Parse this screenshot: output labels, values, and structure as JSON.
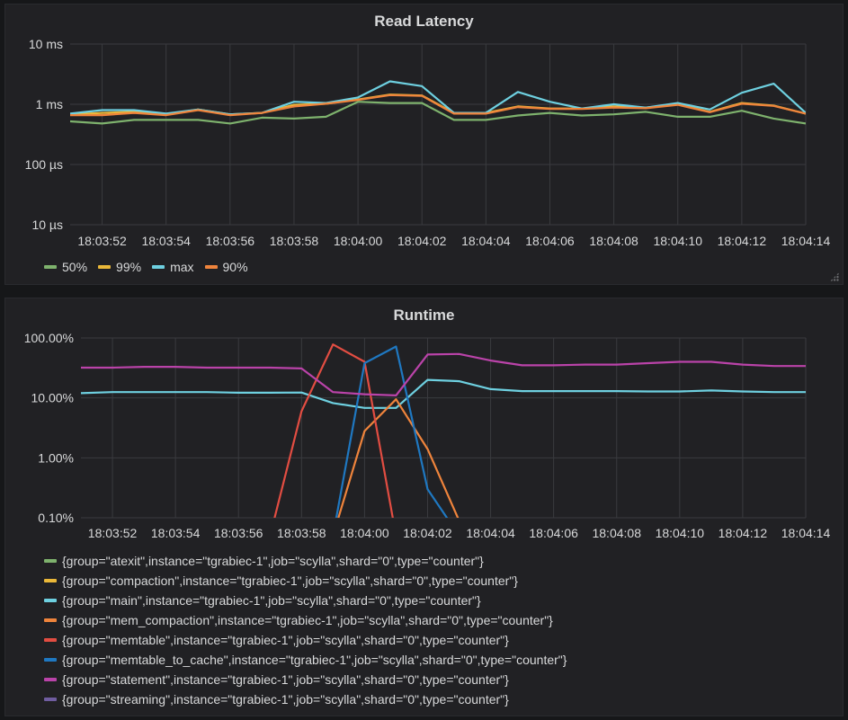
{
  "chart_data": [
    {
      "type": "line",
      "title": "Read Latency",
      "y_scale": "log",
      "y_ticks": [
        {
          "value": 0.01,
          "label": "10 µs"
        },
        {
          "value": 0.1,
          "label": "100 µs"
        },
        {
          "value": 1,
          "label": "1 ms"
        },
        {
          "value": 10,
          "label": "10 ms"
        }
      ],
      "y_unit": "ms",
      "ylim": [
        0.01,
        10
      ],
      "x_tick_labels": [
        "18:03:52",
        "18:03:54",
        "18:03:56",
        "18:03:58",
        "18:04:00",
        "18:04:02",
        "18:04:04",
        "18:04:06",
        "18:04:08",
        "18:04:10",
        "18:04:12",
        "18:04:14"
      ],
      "x": [
        "18:03:51",
        "18:03:52",
        "18:03:53",
        "18:03:54",
        "18:03:55",
        "18:03:56",
        "18:03:57",
        "18:03:58",
        "18:03:59",
        "18:04:00",
        "18:04:01",
        "18:04:02",
        "18:04:03",
        "18:04:04",
        "18:04:05",
        "18:04:06",
        "18:04:07",
        "18:04:08",
        "18:04:09",
        "18:04:10",
        "18:04:11",
        "18:04:12",
        "18:04:13",
        "18:04:14"
      ],
      "grid": true,
      "legend_position": "bottom",
      "series": [
        {
          "name": "50%",
          "color": "#7eb26d",
          "values": [
            0.52,
            0.48,
            0.55,
            0.55,
            0.55,
            0.48,
            0.6,
            0.58,
            0.62,
            1.1,
            1.05,
            1.05,
            0.55,
            0.55,
            0.65,
            0.72,
            0.65,
            0.68,
            0.75,
            0.62,
            0.62,
            0.78,
            0.58,
            0.48
          ]
        },
        {
          "name": "99%",
          "color": "#eab839",
          "values": [
            0.68,
            0.72,
            0.75,
            0.68,
            0.82,
            0.68,
            0.72,
            0.98,
            1.02,
            1.2,
            1.45,
            1.4,
            0.72,
            0.72,
            0.92,
            0.85,
            0.85,
            0.92,
            0.88,
            1.0,
            0.75,
            1.05,
            0.95,
            0.7
          ]
        },
        {
          "name": "max",
          "color": "#6ed0e0",
          "values": [
            0.7,
            0.8,
            0.8,
            0.7,
            0.82,
            0.68,
            0.72,
            1.1,
            1.05,
            1.3,
            2.4,
            2.0,
            0.72,
            0.72,
            1.6,
            1.1,
            0.85,
            1.0,
            0.88,
            1.05,
            0.82,
            1.55,
            2.2,
            0.72
          ]
        },
        {
          "name": "90%",
          "color": "#ef843c",
          "values": [
            0.66,
            0.66,
            0.72,
            0.66,
            0.8,
            0.66,
            0.72,
            0.92,
            1.02,
            1.18,
            1.42,
            1.38,
            0.7,
            0.7,
            0.9,
            0.84,
            0.84,
            0.88,
            0.86,
            0.98,
            0.74,
            1.02,
            0.94,
            0.7
          ]
        }
      ]
    },
    {
      "type": "line",
      "title": "Runtime",
      "y_scale": "log",
      "y_ticks": [
        {
          "value": 0.1,
          "label": "0.10%"
        },
        {
          "value": 1,
          "label": "1.00%"
        },
        {
          "value": 10,
          "label": "10.00%"
        },
        {
          "value": 100,
          "label": "100.00%"
        }
      ],
      "y_unit": "%",
      "ylim": [
        0.1,
        100
      ],
      "x_tick_labels": [
        "18:03:52",
        "18:03:54",
        "18:03:56",
        "18:03:58",
        "18:04:00",
        "18:04:02",
        "18:04:04",
        "18:04:06",
        "18:04:08",
        "18:04:10",
        "18:04:12",
        "18:04:14"
      ],
      "x": [
        "18:03:51",
        "18:03:52",
        "18:03:53",
        "18:03:54",
        "18:03:55",
        "18:03:56",
        "18:03:57",
        "18:03:58",
        "18:03:59",
        "18:04:00",
        "18:04:01",
        "18:04:02",
        "18:04:03",
        "18:04:04",
        "18:04:05",
        "18:04:06",
        "18:04:07",
        "18:04:08",
        "18:04:09",
        "18:04:10",
        "18:04:11",
        "18:04:12",
        "18:04:13",
        "18:04:14"
      ],
      "grid": true,
      "legend_position": "bottom",
      "series": [
        {
          "name": "{group=\"atexit\",instance=\"tgrabiec-1\",job=\"scylla\",shard=\"0\",type=\"counter\"}",
          "color": "#7eb26d",
          "values": [
            null,
            null,
            null,
            null,
            null,
            null,
            null,
            null,
            null,
            null,
            null,
            null,
            null,
            null,
            null,
            null,
            null,
            null,
            null,
            null,
            null,
            null,
            null,
            null
          ]
        },
        {
          "name": "{group=\"compaction\",instance=\"tgrabiec-1\",job=\"scylla\",shard=\"0\",type=\"counter\"}",
          "color": "#eab839",
          "values": [
            null,
            null,
            null,
            null,
            null,
            null,
            null,
            null,
            null,
            null,
            null,
            null,
            null,
            null,
            null,
            null,
            null,
            null,
            null,
            null,
            null,
            null,
            null,
            null
          ]
        },
        {
          "name": "{group=\"main\",instance=\"tgrabiec-1\",job=\"scylla\",shard=\"0\",type=\"counter\"}",
          "color": "#6ed0e0",
          "values": [
            12,
            12.5,
            12.5,
            12.5,
            12.5,
            12.2,
            12.2,
            12.3,
            8.2,
            6.8,
            6.8,
            20,
            19,
            14,
            13,
            13,
            13,
            13,
            12.8,
            12.8,
            13.3,
            12.8,
            12.5,
            12.5
          ]
        },
        {
          "name": "{group=\"mem_compaction\",instance=\"tgrabiec-1\",job=\"scylla\",shard=\"0\",type=\"counter\"}",
          "color": "#ef843c",
          "values": [
            null,
            null,
            null,
            null,
            null,
            null,
            null,
            null,
            0.05,
            2.8,
            9.5,
            1.4,
            0.09,
            null,
            null,
            null,
            null,
            null,
            null,
            null,
            null,
            null,
            null,
            null
          ]
        },
        {
          "name": "{group=\"memtable\",instance=\"tgrabiec-1\",job=\"scylla\",shard=\"0\",type=\"counter\"}",
          "color": "#e24d42",
          "values": [
            null,
            null,
            null,
            null,
            null,
            null,
            0.05,
            6,
            78,
            40,
            0.05,
            null,
            null,
            null,
            null,
            null,
            null,
            null,
            null,
            null,
            null,
            null,
            null,
            null
          ]
        },
        {
          "name": "{group=\"memtable_to_cache\",instance=\"tgrabiec-1\",job=\"scylla\",shard=\"0\",type=\"counter\"}",
          "color": "#1f78c1",
          "values": [
            null,
            null,
            null,
            null,
            null,
            null,
            null,
            null,
            0.05,
            38,
            72,
            0.3,
            0.05,
            null,
            null,
            null,
            null,
            null,
            null,
            null,
            null,
            null,
            null,
            null
          ]
        },
        {
          "name": "{group=\"statement\",instance=\"tgrabiec-1\",job=\"scylla\",shard=\"0\",type=\"counter\"}",
          "color": "#ba43a9",
          "values": [
            32,
            32,
            33,
            33,
            32,
            32,
            32,
            31,
            12.5,
            11.5,
            11,
            53,
            54,
            42,
            35,
            35,
            36,
            36,
            38,
            40,
            40,
            36,
            34,
            34
          ]
        },
        {
          "name": "{group=\"streaming\",instance=\"tgrabiec-1\",job=\"scylla\",shard=\"0\",type=\"counter\"}",
          "color": "#705da0",
          "values": [
            null,
            null,
            null,
            null,
            null,
            null,
            null,
            null,
            null,
            null,
            null,
            null,
            null,
            null,
            null,
            null,
            null,
            null,
            null,
            null,
            null,
            null,
            null,
            null
          ]
        }
      ]
    }
  ]
}
